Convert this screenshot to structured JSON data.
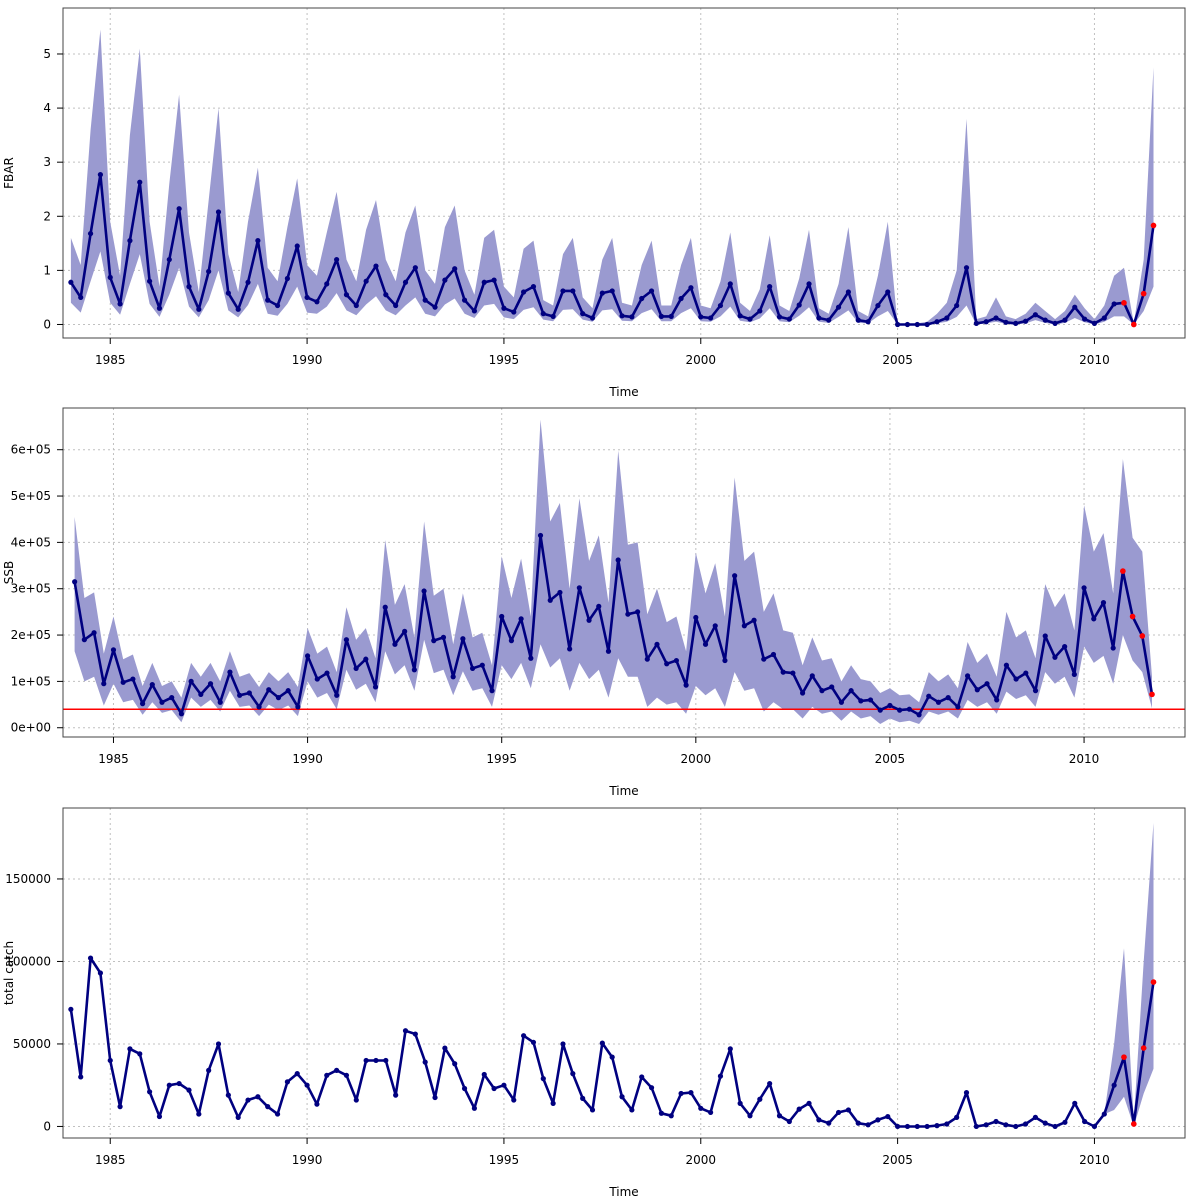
{
  "colors": {
    "line": "#000080",
    "band": "#9a9ad0",
    "projection_points": "#ff0000",
    "reference_line": "#ff0000",
    "grid": "#c0c0c0",
    "frame": "#444444"
  },
  "chart_data": [
    {
      "type": "line",
      "ylabel": "FBAR",
      "xlabel": "Time",
      "xlim": [
        1983.8,
        2012.3
      ],
      "ylim": [
        -0.25,
        5.85
      ],
      "xticks": [
        "1985",
        "1990",
        "1995",
        "2000",
        "2005",
        "2010"
      ],
      "yticks": [
        "0",
        "1",
        "2",
        "3",
        "4",
        "5"
      ],
      "grid": true,
      "x_start": 1984.0,
      "x_step": 0.25,
      "values": [
        0.78,
        0.5,
        1.68,
        2.77,
        0.87,
        0.38,
        1.55,
        2.63,
        0.8,
        0.3,
        1.2,
        2.14,
        0.7,
        0.28,
        0.98,
        2.08,
        0.58,
        0.28,
        0.78,
        1.55,
        0.45,
        0.35,
        0.85,
        1.45,
        0.5,
        0.42,
        0.75,
        1.2,
        0.55,
        0.35,
        0.8,
        1.08,
        0.55,
        0.35,
        0.78,
        1.05,
        0.45,
        0.32,
        0.82,
        1.03,
        0.45,
        0.25,
        0.78,
        0.82,
        0.3,
        0.23,
        0.6,
        0.7,
        0.2,
        0.15,
        0.62,
        0.62,
        0.2,
        0.12,
        0.58,
        0.62,
        0.16,
        0.14,
        0.48,
        0.62,
        0.15,
        0.15,
        0.48,
        0.68,
        0.14,
        0.12,
        0.35,
        0.75,
        0.16,
        0.1,
        0.25,
        0.7,
        0.14,
        0.1,
        0.36,
        0.75,
        0.12,
        0.08,
        0.32,
        0.6,
        0.08,
        0.05,
        0.35,
        0.6,
        0.0,
        0.0,
        0.0,
        0.0,
        0.05,
        0.12,
        0.35,
        1.05,
        0.02,
        0.05,
        0.12,
        0.04,
        0.02,
        0.06,
        0.18,
        0.08,
        0.02,
        0.08,
        0.32,
        0.1,
        0.02,
        0.12,
        0.38,
        0.4,
        0.0,
        0.57,
        1.83
      ],
      "upper": [
        1.6,
        1.1,
        3.6,
        5.45,
        1.9,
        0.9,
        3.5,
        5.1,
        1.9,
        0.7,
        2.6,
        4.25,
        1.7,
        0.6,
        2.3,
        4.0,
        1.3,
        0.6,
        1.9,
        2.9,
        1.05,
        0.8,
        1.8,
        2.7,
        1.1,
        0.9,
        1.7,
        2.45,
        1.2,
        0.8,
        1.75,
        2.3,
        1.2,
        0.8,
        1.7,
        2.2,
        1.0,
        0.75,
        1.8,
        2.2,
        1.0,
        0.55,
        1.6,
        1.75,
        0.7,
        0.5,
        1.4,
        1.55,
        0.45,
        0.35,
        1.3,
        1.6,
        0.5,
        0.3,
        1.2,
        1.6,
        0.4,
        0.35,
        1.1,
        1.55,
        0.35,
        0.35,
        1.1,
        1.6,
        0.35,
        0.3,
        0.8,
        1.7,
        0.4,
        0.25,
        0.65,
        1.65,
        0.35,
        0.25,
        0.85,
        1.75,
        0.3,
        0.2,
        0.75,
        1.8,
        0.25,
        0.15,
        0.9,
        1.9,
        0.0,
        0.0,
        0.02,
        0.05,
        0.2,
        0.4,
        1.0,
        3.8,
        0.1,
        0.15,
        0.5,
        0.15,
        0.1,
        0.2,
        0.4,
        0.25,
        0.1,
        0.25,
        0.55,
        0.3,
        0.1,
        0.35,
        0.9,
        1.05,
        0.02,
        1.2,
        4.75
      ],
      "lower": [
        0.4,
        0.22,
        0.8,
        1.35,
        0.4,
        0.18,
        0.75,
        1.3,
        0.38,
        0.14,
        0.55,
        1.05,
        0.33,
        0.13,
        0.45,
        1.0,
        0.26,
        0.13,
        0.36,
        0.75,
        0.2,
        0.16,
        0.38,
        0.7,
        0.22,
        0.2,
        0.33,
        0.58,
        0.26,
        0.17,
        0.37,
        0.52,
        0.26,
        0.17,
        0.35,
        0.5,
        0.2,
        0.15,
        0.37,
        0.48,
        0.2,
        0.12,
        0.35,
        0.38,
        0.13,
        0.1,
        0.27,
        0.32,
        0.09,
        0.06,
        0.27,
        0.28,
        0.09,
        0.05,
        0.26,
        0.28,
        0.07,
        0.06,
        0.21,
        0.28,
        0.06,
        0.06,
        0.21,
        0.3,
        0.06,
        0.05,
        0.15,
        0.33,
        0.07,
        0.04,
        0.11,
        0.3,
        0.06,
        0.04,
        0.16,
        0.32,
        0.05,
        0.03,
        0.14,
        0.26,
        0.03,
        0.02,
        0.15,
        0.25,
        0.0,
        0.0,
        0.0,
        0.0,
        0.02,
        0.05,
        0.14,
        0.35,
        0.0,
        0.02,
        0.05,
        0.01,
        0.0,
        0.02,
        0.08,
        0.03,
        0.0,
        0.03,
        0.12,
        0.04,
        0.0,
        0.05,
        0.15,
        0.15,
        0.0,
        0.25,
        0.7
      ],
      "projection_points": [
        {
          "x": 2010.75,
          "y": 0.4
        },
        {
          "x": 2011.0,
          "y": 0.0
        },
        {
          "x": 2011.25,
          "y": 0.57
        },
        {
          "x": 2011.5,
          "y": 1.83
        }
      ]
    },
    {
      "type": "line",
      "ylabel": "SSB",
      "xlabel": "Time",
      "xlim": [
        1983.7,
        2012.6
      ],
      "ylim": [
        -20000,
        690000
      ],
      "xticks": [
        "1985",
        "1990",
        "1995",
        "2000",
        "2005",
        "2010"
      ],
      "yticks": [
        "0e+00",
        "1e+05",
        "2e+05",
        "3e+05",
        "4e+05",
        "5e+05",
        "6e+05"
      ],
      "grid": true,
      "reference_line": 40000,
      "x_start": 1984.0,
      "x_step": 0.25,
      "values": [
        315000,
        190000,
        205000,
        95000,
        168000,
        98000,
        105000,
        52000,
        93000,
        55000,
        65000,
        30000,
        100000,
        72000,
        95000,
        55000,
        120000,
        70000,
        75000,
        45000,
        82000,
        65000,
        80000,
        45000,
        155000,
        105000,
        118000,
        70000,
        190000,
        128000,
        148000,
        88000,
        260000,
        180000,
        208000,
        125000,
        295000,
        188000,
        195000,
        110000,
        192000,
        128000,
        135000,
        80000,
        240000,
        188000,
        235000,
        150000,
        415000,
        275000,
        292000,
        170000,
        302000,
        232000,
        262000,
        165000,
        362000,
        245000,
        250000,
        148000,
        180000,
        138000,
        145000,
        92000,
        238000,
        180000,
        220000,
        145000,
        328000,
        220000,
        232000,
        148000,
        158000,
        120000,
        118000,
        75000,
        112000,
        80000,
        88000,
        55000,
        80000,
        58000,
        60000,
        38000,
        48000,
        38000,
        40000,
        28000,
        68000,
        55000,
        65000,
        45000,
        112000,
        82000,
        95000,
        60000,
        135000,
        105000,
        118000,
        80000,
        198000,
        152000,
        175000,
        115000,
        302000,
        235000,
        270000,
        172000,
        338000,
        240000,
        198000,
        72000
      ],
      "upper": [
        455000,
        280000,
        292000,
        160000,
        240000,
        148000,
        158000,
        90000,
        140000,
        90000,
        100000,
        65000,
        140000,
        110000,
        140000,
        100000,
        165000,
        110000,
        118000,
        88000,
        120000,
        100000,
        120000,
        88000,
        215000,
        160000,
        175000,
        120000,
        260000,
        190000,
        215000,
        150000,
        405000,
        265000,
        310000,
        195000,
        445000,
        285000,
        300000,
        180000,
        290000,
        195000,
        205000,
        135000,
        370000,
        280000,
        365000,
        240000,
        665000,
        445000,
        485000,
        300000,
        495000,
        360000,
        415000,
        270000,
        598000,
        395000,
        400000,
        245000,
        300000,
        228000,
        240000,
        165000,
        378000,
        290000,
        355000,
        240000,
        540000,
        360000,
        380000,
        250000,
        290000,
        210000,
        205000,
        135000,
        195000,
        145000,
        150000,
        100000,
        135000,
        105000,
        100000,
        75000,
        85000,
        70000,
        72000,
        55000,
        120000,
        100000,
        115000,
        85000,
        185000,
        140000,
        160000,
        110000,
        250000,
        195000,
        210000,
        150000,
        310000,
        260000,
        290000,
        210000,
        480000,
        380000,
        420000,
        290000,
        580000,
        410000,
        380000,
        110000
      ],
      "lower": [
        165000,
        100000,
        110000,
        48000,
        95000,
        55000,
        60000,
        28000,
        55000,
        32000,
        38000,
        12000,
        65000,
        45000,
        60000,
        35000,
        80000,
        45000,
        48000,
        25000,
        50000,
        38000,
        48000,
        25000,
        100000,
        65000,
        75000,
        40000,
        125000,
        82000,
        95000,
        55000,
        165000,
        115000,
        135000,
        80000,
        190000,
        118000,
        125000,
        70000,
        122000,
        80000,
        85000,
        45000,
        135000,
        105000,
        140000,
        85000,
        180000,
        130000,
        150000,
        80000,
        140000,
        105000,
        125000,
        65000,
        150000,
        110000,
        110000,
        45000,
        65000,
        50000,
        55000,
        30000,
        90000,
        70000,
        85000,
        45000,
        120000,
        80000,
        85000,
        35000,
        55000,
        40000,
        40000,
        20000,
        45000,
        30000,
        35000,
        15000,
        35000,
        20000,
        25000,
        8000,
        20000,
        12000,
        15000,
        8000,
        35000,
        28000,
        35000,
        20000,
        60000,
        45000,
        55000,
        30000,
        78000,
        62000,
        70000,
        45000,
        120000,
        95000,
        110000,
        65000,
        175000,
        140000,
        155000,
        95000,
        200000,
        145000,
        120000,
        42000
      ],
      "projection_points": [
        {
          "x": 2011.0,
          "y": 338000
        },
        {
          "x": 2011.25,
          "y": 240000
        },
        {
          "x": 2011.5,
          "y": 198000
        },
        {
          "x": 2011.75,
          "y": 72000
        }
      ]
    },
    {
      "type": "line",
      "ylabel": "total catch",
      "xlabel": "Time",
      "xlim": [
        1983.8,
        2012.3
      ],
      "ylim": [
        -7000,
        193000
      ],
      "xticks": [
        "1985",
        "1990",
        "1995",
        "2000",
        "2005",
        "2010"
      ],
      "yticks": [
        "0",
        "50000",
        "100000",
        "150000"
      ],
      "grid": true,
      "x_start": 1984.0,
      "x_step": 0.25,
      "values": [
        71000,
        30000,
        102000,
        93000,
        40000,
        12000,
        47000,
        44000,
        21000,
        6000,
        25000,
        26000,
        22000,
        7500,
        34000,
        50000,
        19000,
        5500,
        16000,
        18000,
        12000,
        7500,
        27000,
        32000,
        25000,
        13500,
        31000,
        34000,
        31000,
        16000,
        40000,
        40000,
        40000,
        19000,
        58000,
        56000,
        39000,
        17500,
        47500,
        38000,
        23000,
        11000,
        31500,
        23000,
        25000,
        16000,
        55000,
        51000,
        29000,
        14000,
        50000,
        32000,
        17000,
        10000,
        50500,
        42000,
        18000,
        10000,
        30000,
        23500,
        8000,
        6500,
        20000,
        20500,
        11000,
        8500,
        30500,
        47000,
        14000,
        6500,
        16500,
        26000,
        6500,
        3000,
        10500,
        14000,
        4000,
        2000,
        8500,
        10000,
        2000,
        1000,
        4000,
        6000,
        0,
        0,
        0,
        0,
        500,
        1500,
        5500,
        20500,
        0,
        1000,
        3000,
        1000,
        0,
        1500,
        5500,
        2000,
        0,
        2500,
        14000,
        3000,
        0,
        7500,
        25000,
        42000,
        1500,
        47500,
        87500
      ],
      "upper": [
        71000,
        30000,
        102000,
        93000,
        40000,
        12000,
        47000,
        44000,
        21000,
        6000,
        25000,
        26000,
        22000,
        7500,
        34000,
        50000,
        19000,
        5500,
        16000,
        18000,
        12000,
        7500,
        27000,
        32000,
        25000,
        13500,
        31000,
        34000,
        31000,
        16000,
        40000,
        40000,
        40000,
        19000,
        58000,
        56000,
        39000,
        17500,
        47500,
        38000,
        23000,
        11000,
        31500,
        23000,
        25000,
        16000,
        55000,
        51000,
        29000,
        14000,
        50000,
        32000,
        17000,
        10000,
        50500,
        42000,
        18000,
        10000,
        30000,
        23500,
        8000,
        6500,
        20000,
        20500,
        11000,
        8500,
        30500,
        47000,
        14000,
        6500,
        16500,
        26000,
        6500,
        3000,
        10500,
        14000,
        4000,
        2000,
        8500,
        10000,
        2000,
        1000,
        4000,
        6000,
        0,
        0,
        0,
        0,
        500,
        1500,
        5500,
        20500,
        0,
        1000,
        3000,
        1000,
        0,
        1500,
        5500,
        2000,
        0,
        2500,
        14000,
        3000,
        0,
        7500,
        50000,
        108000,
        3500,
        100000,
        184000
      ],
      "lower": [
        71000,
        30000,
        102000,
        93000,
        40000,
        12000,
        47000,
        44000,
        21000,
        6000,
        25000,
        26000,
        22000,
        7500,
        34000,
        50000,
        19000,
        5500,
        16000,
        18000,
        12000,
        7500,
        27000,
        32000,
        25000,
        13500,
        31000,
        34000,
        31000,
        16000,
        40000,
        40000,
        40000,
        19000,
        58000,
        56000,
        39000,
        17500,
        47500,
        38000,
        23000,
        11000,
        31500,
        23000,
        25000,
        16000,
        55000,
        51000,
        29000,
        14000,
        50000,
        32000,
        17000,
        10000,
        50500,
        42000,
        18000,
        10000,
        30000,
        23500,
        8000,
        6500,
        20000,
        20500,
        11000,
        8500,
        30500,
        47000,
        14000,
        6500,
        16500,
        26000,
        6500,
        3000,
        10500,
        14000,
        4000,
        2000,
        8500,
        10000,
        2000,
        1000,
        4000,
        6000,
        0,
        0,
        0,
        0,
        500,
        1500,
        5500,
        20500,
        0,
        1000,
        3000,
        1000,
        0,
        1500,
        5500,
        2000,
        0,
        2500,
        14000,
        3000,
        0,
        7500,
        10000,
        18000,
        0,
        20000,
        35000
      ],
      "projection_points": [
        {
          "x": 2010.75,
          "y": 42000
        },
        {
          "x": 2011.0,
          "y": 1500
        },
        {
          "x": 2011.25,
          "y": 47500
        },
        {
          "x": 2011.5,
          "y": 87500
        }
      ]
    }
  ]
}
